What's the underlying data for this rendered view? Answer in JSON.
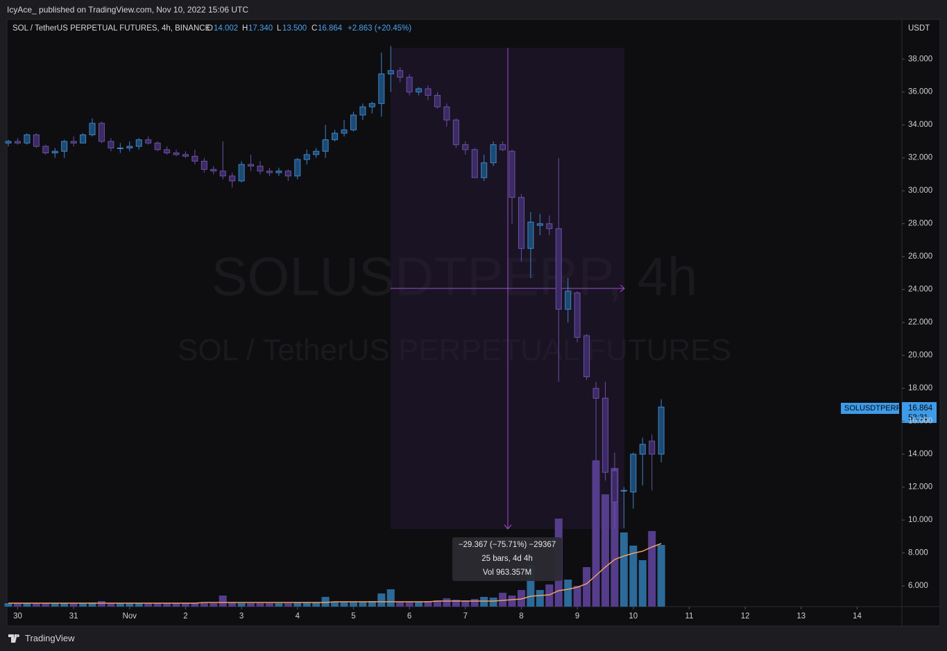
{
  "header": {
    "text": "IcyAce_ published on TradingView.com, Nov 10, 2022 15:06 UTC"
  },
  "footer": {
    "brand": "TradingView"
  },
  "chart_data": {
    "type": "candlestick",
    "legend": {
      "symbol": "SOL / TetherUS PERPETUAL FUTURES, 4h, BINANCE",
      "open_label": "O",
      "open": "14.002",
      "high_label": "H",
      "high": "17.340",
      "low_label": "L",
      "low": "13.500",
      "close_label": "C",
      "close": "16.864",
      "change": "+2.863 (+20.45%)"
    },
    "watermark": {
      "line1": "SOLUSDTPERP, 4h",
      "line2": "SOL / TetherUS PERPETUAL FUTURES"
    },
    "currency": "USDT",
    "price_tag": {
      "symbol": "SOLUSDTPERP",
      "price": "16.864",
      "countdown": "53:31"
    },
    "measure": {
      "change": "−29.367 (−75.71%) −29367",
      "bars": "25 bars, 4d 4h",
      "volume": "Vol 963.357M"
    },
    "up_color": "#3f86c8",
    "down_color": "#6b51a6",
    "volume_up_color": "#2b6a99",
    "volume_down_color": "#553d8c",
    "ma_color": "#f0a062",
    "open": [
      32.9,
      33.0,
      32.9,
      33.4,
      32.7,
      32.3,
      32.4,
      33.0,
      32.9,
      33.4,
      34.1,
      33.0,
      32.6,
      32.6,
      32.7,
      33.1,
      32.9,
      32.5,
      32.3,
      32.2,
      32.1,
      31.8,
      31.3,
      31.2,
      30.9,
      30.6,
      31.6,
      31.5,
      31.2,
      31.1,
      31.2,
      30.9,
      31.9,
      32.2,
      32.4,
      33.1,
      33.5,
      33.7,
      34.6,
      35.1,
      35.3,
      37.1,
      37.3,
      36.9,
      36.0,
      36.2,
      35.8,
      35.1,
      34.3,
      32.8,
      32.5,
      30.8,
      31.7,
      32.8,
      32.4,
      29.6,
      26.5,
      27.9,
      28.0,
      27.7,
      22.8,
      23.8,
      21.2,
      18.0,
      17.4,
      13.0,
      11.8,
      11.7,
      14.0,
      14.8,
      14.002
    ],
    "high": [
      33.1,
      33.2,
      33.5,
      33.5,
      32.8,
      32.6,
      33.1,
      33.3,
      33.5,
      34.4,
      34.2,
      33.2,
      32.9,
      33.0,
      33.2,
      33.3,
      33.0,
      32.7,
      32.5,
      32.4,
      32.5,
      32.0,
      31.5,
      33.0,
      31.1,
      31.8,
      32.2,
      31.8,
      31.4,
      31.4,
      31.3,
      32.0,
      32.5,
      32.6,
      34.0,
      33.7,
      34.3,
      34.8,
      35.3,
      35.4,
      38.4,
      38.8,
      37.5,
      37.1,
      36.3,
      36.4,
      36.0,
      35.3,
      34.4,
      33.0,
      32.6,
      32.2,
      33.0,
      33.0,
      32.5,
      29.8,
      28.7,
      28.6,
      28.5,
      32.0,
      24.7,
      23.9,
      21.3,
      18.4,
      18.4,
      14.1,
      12.0,
      14.1,
      15.0,
      15.2,
      17.34
    ],
    "low": [
      32.7,
      32.8,
      32.8,
      32.6,
      32.2,
      32.0,
      32.0,
      32.7,
      32.9,
      33.3,
      32.9,
      32.4,
      32.3,
      32.4,
      32.5,
      32.8,
      32.4,
      32.2,
      32.1,
      32.0,
      31.6,
      31.1,
      31.0,
      30.7,
      30.2,
      30.5,
      31.2,
      31.0,
      30.9,
      30.9,
      30.6,
      30.7,
      31.6,
      32.0,
      32.0,
      33.0,
      33.3,
      33.6,
      34.3,
      34.7,
      34.5,
      36.0,
      36.6,
      35.8,
      35.8,
      35.5,
      35.0,
      33.9,
      32.6,
      32.2,
      30.8,
      30.6,
      31.5,
      32.4,
      28.0,
      25.7,
      24.7,
      27.3,
      27.3,
      18.4,
      22.0,
      20.8,
      18.5,
      13.6,
      12.4,
      9.5,
      9.5,
      10.7,
      12.1,
      11.8,
      13.5
    ],
    "close": [
      33.0,
      32.9,
      33.4,
      32.7,
      32.3,
      32.4,
      33.0,
      32.9,
      33.4,
      34.1,
      33.0,
      32.6,
      32.6,
      32.7,
      33.1,
      32.9,
      32.5,
      32.3,
      32.2,
      32.1,
      31.8,
      31.3,
      31.2,
      30.9,
      30.6,
      31.6,
      31.5,
      31.2,
      31.1,
      31.2,
      30.9,
      31.9,
      32.2,
      32.4,
      33.1,
      33.5,
      33.7,
      34.6,
      35.1,
      35.3,
      37.1,
      37.3,
      36.9,
      36.0,
      36.2,
      35.8,
      35.1,
      34.3,
      32.8,
      32.5,
      30.8,
      31.7,
      32.8,
      32.5,
      29.6,
      26.5,
      28.1,
      28.0,
      27.7,
      22.8,
      23.9,
      21.1,
      18.7,
      17.4,
      12.9,
      11.1,
      11.8,
      14.0,
      14.6,
      14.0,
      16.864
    ],
    "volume": [
      5,
      5,
      5,
      5,
      5,
      5,
      5,
      5,
      5,
      6,
      8,
      5,
      5,
      5,
      5,
      5,
      5,
      5,
      5,
      5,
      5,
      5,
      5,
      16,
      6,
      5,
      5,
      5,
      5,
      5,
      5,
      6,
      6,
      6,
      14,
      7,
      7,
      7,
      7,
      8,
      19,
      25,
      7,
      7,
      7,
      8,
      9,
      12,
      10,
      9,
      11,
      14,
      13,
      20,
      16,
      24,
      60,
      24,
      32,
      127,
      39,
      30,
      57,
      211,
      162,
      200,
      107,
      88,
      67,
      109,
      89
    ],
    "volume_ma": [
      5,
      5,
      5,
      5,
      5,
      5,
      5,
      5,
      5,
      5,
      5,
      5,
      5,
      5,
      5,
      5,
      5,
      5,
      5,
      5,
      5,
      6,
      6,
      6,
      6,
      6,
      6,
      6,
      6,
      6,
      6,
      6,
      6,
      6,
      6,
      7,
      7,
      7,
      7,
      7,
      7,
      7,
      7,
      7,
      7,
      7,
      8,
      8,
      8,
      8,
      8,
      8,
      8,
      9,
      10,
      11,
      15,
      16,
      17,
      23,
      25,
      28,
      33,
      45,
      57,
      68,
      73,
      77,
      80,
      86,
      91
    ],
    "xlim": [
      -0.15,
      95.8
    ],
    "xticks": [
      {
        "value": 1,
        "label": "30"
      },
      {
        "value": 7,
        "label": "31"
      },
      {
        "value": 13,
        "label": "Nov"
      },
      {
        "value": 19,
        "label": "2"
      },
      {
        "value": 25,
        "label": "3"
      },
      {
        "value": 31,
        "label": "4"
      },
      {
        "value": 37,
        "label": "5"
      },
      {
        "value": 43,
        "label": "6"
      },
      {
        "value": 49,
        "label": "7"
      },
      {
        "value": 55,
        "label": "8"
      },
      {
        "value": 61,
        "label": "9"
      },
      {
        "value": 67,
        "label": "10"
      },
      {
        "value": 73,
        "label": "11"
      },
      {
        "value": 79,
        "label": "12"
      },
      {
        "value": 85,
        "label": "13"
      },
      {
        "value": 91,
        "label": "14"
      }
    ],
    "ylim": [
      4.74,
      40.41
    ],
    "yticks": [
      {
        "value": 6,
        "label": "6.000"
      },
      {
        "value": 8,
        "label": "8.000"
      },
      {
        "value": 10,
        "label": "10.000"
      },
      {
        "value": 12,
        "label": "12.000"
      },
      {
        "value": 14,
        "label": "14.000"
      },
      {
        "value": 16,
        "label": "16.000"
      },
      {
        "value": 18,
        "label": "18.000"
      },
      {
        "value": 20,
        "label": "20.000"
      },
      {
        "value": 22,
        "label": "22.000"
      },
      {
        "value": 24,
        "label": "24.000"
      },
      {
        "value": 26,
        "label": "26.000"
      },
      {
        "value": 28,
        "label": "28.000"
      },
      {
        "value": 30,
        "label": "30.000"
      },
      {
        "value": 32,
        "label": "32.000"
      },
      {
        "value": 34,
        "label": "34.000"
      },
      {
        "value": 36,
        "label": "36.000"
      },
      {
        "value": 38,
        "label": "38.000"
      }
    ]
  }
}
